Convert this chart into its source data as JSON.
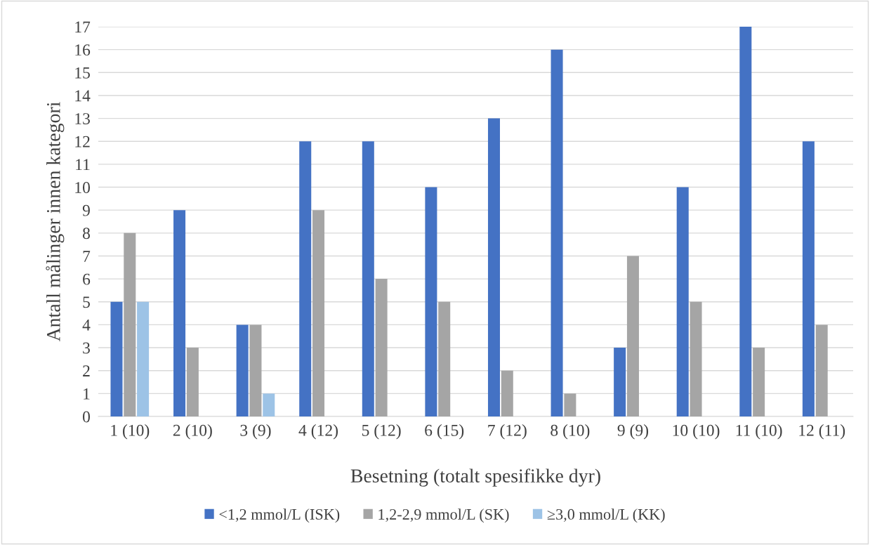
{
  "chart_data": {
    "type": "bar",
    "xlabel": "Besetning (totalt spesifikke dyr)",
    "ylabel": "Antall målinger innen kategori",
    "categories": [
      "1 (10)",
      "2 (10)",
      "3 (9)",
      "4 (12)",
      "5 (12)",
      "6 (15)",
      "7 (12)",
      "8 (10)",
      "9 (9)",
      "10 (10)",
      "11 (10)",
      "12 (11)"
    ],
    "series": [
      {
        "name": "<1,2 mmol/L (ISK)",
        "color": "#4472c4",
        "values": [
          5,
          9,
          4,
          12,
          12,
          10,
          13,
          16,
          3,
          10,
          17,
          12
        ]
      },
      {
        "name": "1,2-2,9 mmol/L (SK)",
        "color": "#a5a5a5",
        "values": [
          8,
          3,
          4,
          9,
          6,
          5,
          2,
          1,
          7,
          5,
          3,
          4
        ]
      },
      {
        "name": "≥3,0 mmol/L (KK)",
        "color": "#9dc3e6",
        "values": [
          5,
          0,
          1,
          0,
          0,
          0,
          0,
          0,
          0,
          0,
          0,
          0
        ]
      }
    ],
    "ylim": [
      0,
      17
    ],
    "yticks": [
      0,
      1,
      2,
      3,
      4,
      5,
      6,
      7,
      8,
      9,
      10,
      11,
      12,
      13,
      14,
      15,
      16,
      17
    ],
    "grid": "y",
    "legend": "bottom"
  }
}
